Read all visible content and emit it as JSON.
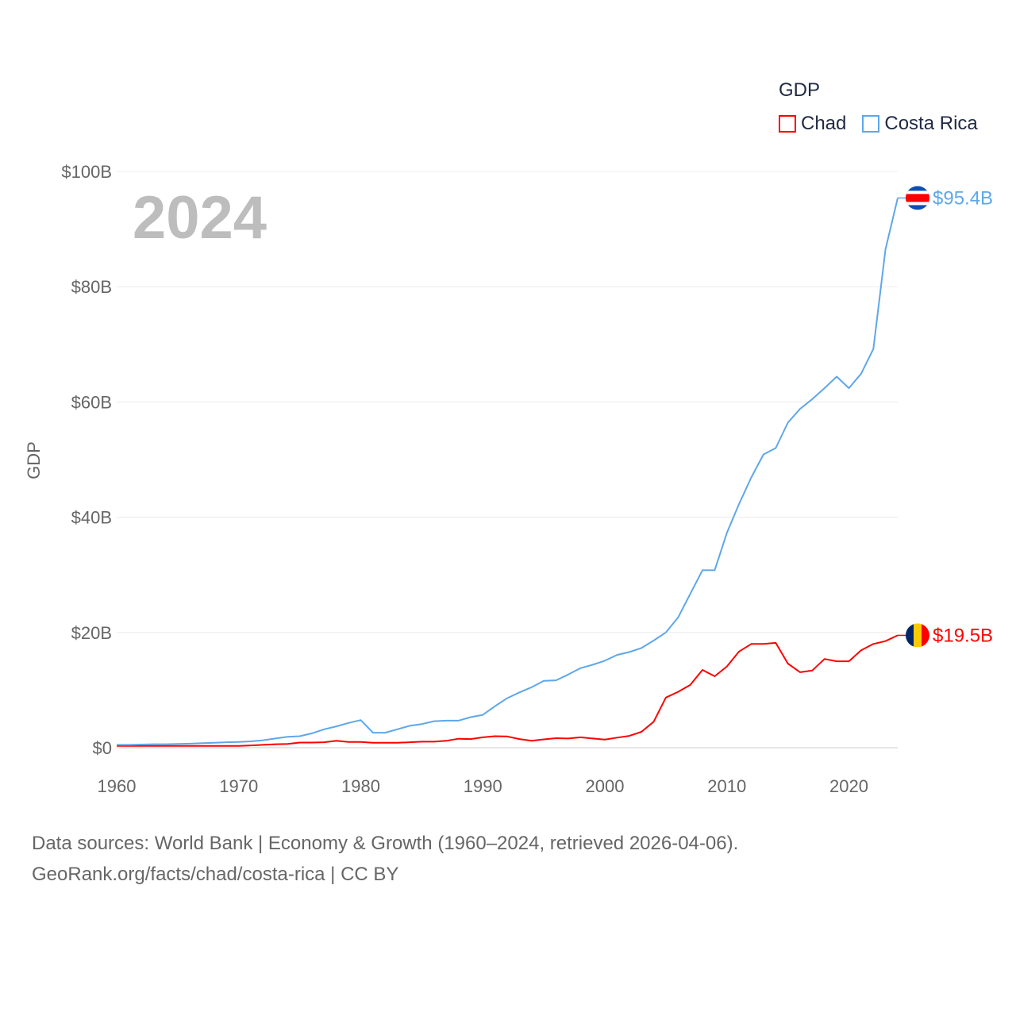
{
  "chart_data": {
    "type": "line",
    "title": "GDP",
    "year_label": "2024",
    "ylabel": "GDP",
    "xlabel": "",
    "ylim": [
      0,
      100
    ],
    "xlim": [
      1960,
      2024
    ],
    "y_ticks": [
      0,
      20,
      40,
      60,
      80,
      100
    ],
    "y_tick_labels": [
      "$0",
      "$20B",
      "$40B",
      "$60B",
      "$80B",
      "$100B"
    ],
    "x_ticks": [
      1960,
      1970,
      1980,
      1990,
      2000,
      2010,
      2020
    ],
    "x_tick_labels": [
      "1960",
      "1970",
      "1980",
      "1990",
      "2000",
      "2010",
      "2020"
    ],
    "grid": true,
    "legend_placement": "top-right",
    "x": [
      1960,
      1961,
      1962,
      1963,
      1964,
      1965,
      1966,
      1967,
      1968,
      1969,
      1970,
      1971,
      1972,
      1973,
      1974,
      1975,
      1976,
      1977,
      1978,
      1979,
      1980,
      1981,
      1982,
      1983,
      1984,
      1985,
      1986,
      1987,
      1988,
      1989,
      1990,
      1991,
      1992,
      1993,
      1994,
      1995,
      1996,
      1997,
      1998,
      1999,
      2000,
      2001,
      2002,
      2003,
      2004,
      2005,
      2006,
      2007,
      2008,
      2009,
      2010,
      2011,
      2012,
      2013,
      2014,
      2015,
      2016,
      2017,
      2018,
      2019,
      2020,
      2021,
      2022,
      2023,
      2024
    ],
    "series": [
      {
        "name": "Chad",
        "color": "#ff0000",
        "end_label": "$19.5B",
        "flag": "chad-flag",
        "values": [
          0.3,
          0.3,
          0.3,
          0.3,
          0.3,
          0.3,
          0.3,
          0.3,
          0.3,
          0.3,
          0.3,
          0.4,
          0.5,
          0.6,
          0.65,
          0.9,
          0.9,
          0.95,
          1.2,
          1.0,
          1.0,
          0.85,
          0.85,
          0.85,
          0.95,
          1.05,
          1.05,
          1.2,
          1.55,
          1.5,
          1.8,
          2.0,
          1.95,
          1.5,
          1.2,
          1.45,
          1.65,
          1.6,
          1.8,
          1.6,
          1.4,
          1.75,
          2.05,
          2.75,
          4.5,
          8.7,
          9.7,
          10.9,
          13.5,
          12.4,
          14.1,
          16.7,
          18.0,
          18.0,
          18.2,
          14.6,
          13.1,
          13.4,
          15.4,
          15.0,
          15.0,
          16.9,
          18.0,
          18.5,
          19.5
        ]
      },
      {
        "name": "Costa Rica",
        "color": "#5ea7ea",
        "end_label": "$95.4B",
        "flag": "costa-rica-flag",
        "values": [
          0.5,
          0.5,
          0.55,
          0.6,
          0.6,
          0.65,
          0.7,
          0.8,
          0.85,
          0.95,
          1.0,
          1.1,
          1.3,
          1.6,
          1.9,
          2.0,
          2.5,
          3.2,
          3.7,
          4.3,
          4.8,
          2.6,
          2.6,
          3.2,
          3.8,
          4.1,
          4.6,
          4.7,
          4.7,
          5.3,
          5.7,
          7.2,
          8.6,
          9.6,
          10.5,
          11.6,
          11.7,
          12.7,
          13.8,
          14.4,
          15.1,
          16.1,
          16.6,
          17.3,
          18.6,
          20.0,
          22.6,
          26.7,
          30.8,
          30.8,
          37.3,
          42.3,
          46.9,
          50.9,
          52.0,
          56.4,
          58.8,
          60.5,
          62.4,
          64.4,
          62.4,
          64.9,
          69.2,
          86.5,
          95.4
        ]
      }
    ]
  },
  "footer": {
    "line1": "Data sources: World Bank | Economy & Growth (1960–2024, retrieved 2026-04-06).",
    "line2": "GeoRank.org/facts/chad/costa-rica | CC BY"
  }
}
